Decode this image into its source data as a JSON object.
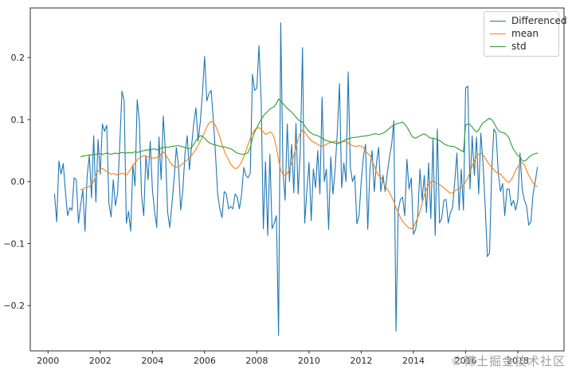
{
  "figure": {
    "background": "#ffffff"
  },
  "chart_data": {
    "type": "line",
    "title": "",
    "xlabel": "",
    "ylabel": "",
    "grid": "off",
    "xlim": [
      1999.32,
      2019.77
    ],
    "ylim": [
      -0.273,
      0.28
    ],
    "xticks": {
      "values": [
        2000,
        2002,
        2004,
        2006,
        2008,
        2010,
        2012,
        2014,
        2016,
        2018
      ],
      "labels": [
        "2000",
        "2002",
        "2004",
        "2006",
        "2008",
        "2010",
        "2012",
        "2014",
        "2016",
        "2018"
      ]
    },
    "yticks": {
      "values": [
        0.2,
        0.1,
        0.0,
        -0.1,
        -0.2
      ],
      "labels": [
        "0.2",
        "0.1",
        "0.0",
        "−0.1",
        "−0.2"
      ]
    },
    "legend": {
      "position": "upper-right"
    },
    "watermark": {
      "text": "©稀土掘金技术社区",
      "color": "#a0a0a0"
    },
    "series": [
      {
        "name": "Differenced",
        "color": "#1f77b4",
        "x_start": 2000.25,
        "dx_years": 0.083333,
        "values": [
          -0.02,
          -0.065,
          0.033,
          0.012,
          0.029,
          -0.016,
          -0.055,
          -0.042,
          -0.046,
          0.006,
          0.003,
          -0.067,
          -0.038,
          -0.013,
          -0.08,
          0.01,
          0.042,
          -0.026,
          0.074,
          -0.033,
          0.068,
          0.012,
          0.093,
          0.081,
          0.091,
          -0.035,
          -0.057,
          0.003,
          -0.039,
          -0.018,
          0.061,
          0.146,
          0.13,
          -0.067,
          -0.048,
          -0.08,
          0.027,
          -0.007,
          0.132,
          0.097,
          -0.022,
          -0.055,
          0.042,
          0.003,
          0.065,
          -0.013,
          -0.048,
          -0.074,
          0.072,
          0.003,
          0.106,
          0.046,
          -0.05,
          -0.074,
          -0.035,
          0.006,
          0.055,
          0.025,
          -0.046,
          -0.013,
          0.046,
          0.074,
          0.019,
          0.057,
          0.094,
          0.119,
          0.065,
          0.096,
          0.142,
          0.202,
          0.13,
          0.142,
          0.147,
          0.1,
          0.044,
          -0.02,
          -0.044,
          -0.058,
          -0.016,
          -0.02,
          -0.044,
          -0.04,
          -0.044,
          -0.02,
          -0.025,
          -0.044,
          -0.02,
          0.023,
          0.01,
          0.006,
          0.014,
          0.173,
          0.147,
          0.151,
          0.219,
          0.13,
          -0.076,
          0.032,
          -0.087,
          0.044,
          -0.076,
          -0.067,
          -0.055,
          -0.248,
          0.256,
          0.019,
          -0.03,
          0.093,
          0.0,
          0.06,
          -0.018,
          0.094,
          -0.02,
          0.05,
          0.216,
          -0.067,
          -0.016,
          0.031,
          -0.063,
          0.02,
          -0.01,
          0.05,
          -0.02,
          0.136,
          0.0,
          0.02,
          -0.077,
          0.04,
          -0.02,
          0.02,
          0.08,
          0.158,
          -0.01,
          0.03,
          0.0,
          0.177,
          0.023,
          0.0,
          0.01,
          -0.068,
          -0.055,
          0.0,
          0.04,
          0.06,
          -0.077,
          0.019,
          0.05,
          -0.016,
          0.03,
          0.055,
          -0.016,
          0.01,
          -0.016,
          0.014,
          0.04,
          0.06,
          0.098,
          -0.241,
          -0.046,
          -0.029,
          -0.025,
          -0.055,
          0.036,
          -0.012,
          0.006,
          -0.085,
          -0.077,
          -0.055,
          0.02,
          -0.03,
          0.01,
          -0.05,
          0.03,
          -0.06,
          0.07,
          -0.087,
          0.085,
          -0.067,
          -0.059,
          -0.03,
          -0.029,
          -0.067,
          -0.05,
          -0.042,
          0.0,
          0.046,
          -0.046,
          0.02,
          -0.046,
          0.151,
          0.154,
          -0.012,
          0.074,
          0.01,
          0.072,
          -0.02,
          0.078,
          0.03,
          -0.04,
          -0.121,
          -0.115,
          0.02,
          0.085,
          0.078,
          0.014,
          -0.016,
          -0.003,
          -0.055,
          -0.012,
          -0.012,
          -0.039,
          -0.03,
          -0.046,
          -0.029,
          0.046,
          -0.012,
          -0.03,
          -0.039,
          -0.07,
          -0.065,
          -0.02,
          0.0,
          0.023
        ]
      },
      {
        "name": "mean",
        "color": "#ff7f0e",
        "x_start": 2001.25,
        "dx_years": 0.083333,
        "values": [
          -0.013,
          -0.012,
          -0.01,
          -0.009,
          -0.008,
          -0.005,
          0.0,
          0.012,
          0.017,
          0.02,
          0.021,
          0.019,
          0.016,
          0.014,
          0.012,
          0.013,
          0.012,
          0.011,
          0.012,
          0.014,
          0.012,
          0.011,
          0.015,
          0.02,
          0.026,
          0.03,
          0.035,
          0.038,
          0.04,
          0.042,
          0.041,
          0.04,
          0.039,
          0.038,
          0.038,
          0.039,
          0.04,
          0.044,
          0.048,
          0.044,
          0.038,
          0.032,
          0.027,
          0.024,
          0.023,
          0.024,
          0.026,
          0.029,
          0.032,
          0.035,
          0.038,
          0.042,
          0.047,
          0.052,
          0.058,
          0.065,
          0.072,
          0.08,
          0.088,
          0.094,
          0.097,
          0.096,
          0.09,
          0.082,
          0.072,
          0.06,
          0.05,
          0.042,
          0.035,
          0.028,
          0.024,
          0.021,
          0.022,
          0.026,
          0.032,
          0.04,
          0.05,
          0.06,
          0.07,
          0.078,
          0.083,
          0.086,
          0.087,
          0.084,
          0.08,
          0.076,
          0.078,
          0.08,
          0.078,
          0.07,
          0.055,
          0.035,
          0.018,
          0.012,
          0.01,
          0.013,
          0.02,
          0.03,
          0.042,
          0.055,
          0.068,
          0.078,
          0.083,
          0.08,
          0.075,
          0.07,
          0.066,
          0.064,
          0.062,
          0.06,
          0.058,
          0.057,
          0.058,
          0.06,
          0.062,
          0.063,
          0.064,
          0.065,
          0.064,
          0.063,
          0.064,
          0.065,
          0.064,
          0.062,
          0.06,
          0.058,
          0.057,
          0.057,
          0.058,
          0.057,
          0.055,
          0.05,
          0.045,
          0.042,
          0.035,
          0.025,
          0.016,
          0.01,
          0.007,
          0.0,
          -0.008,
          -0.012,
          -0.018,
          -0.025,
          -0.032,
          -0.042,
          -0.05,
          -0.058,
          -0.064,
          -0.068,
          -0.072,
          -0.075,
          -0.076,
          -0.073,
          -0.066,
          -0.058,
          -0.048,
          -0.035,
          -0.022,
          -0.012,
          -0.005,
          -0.001,
          0.001,
          -0.001,
          -0.003,
          -0.005,
          -0.007,
          -0.01,
          -0.013,
          -0.016,
          -0.019,
          -0.018,
          -0.015,
          -0.013,
          -0.011,
          -0.009,
          -0.006,
          0.0,
          0.006,
          0.015,
          0.025,
          0.034,
          0.04,
          0.044,
          0.046,
          0.043,
          0.038,
          0.032,
          0.027,
          0.023,
          0.019,
          0.015,
          0.014,
          0.012,
          0.008,
          0.004,
          0.0,
          -0.001,
          0.003,
          0.01,
          0.018,
          0.024,
          0.028,
          0.031,
          0.027,
          0.018,
          0.01,
          0.005,
          -0.002,
          -0.006,
          -0.008
        ]
      },
      {
        "name": "std",
        "color": "#2ca02c",
        "x_start": 2001.25,
        "dx_years": 0.083333,
        "values": [
          0.04,
          0.041,
          0.042,
          0.042,
          0.043,
          0.043,
          0.044,
          0.044,
          0.045,
          0.045,
          0.044,
          0.045,
          0.046,
          0.045,
          0.044,
          0.045,
          0.046,
          0.045,
          0.046,
          0.047,
          0.046,
          0.046,
          0.047,
          0.046,
          0.047,
          0.048,
          0.047,
          0.048,
          0.049,
          0.05,
          0.051,
          0.051,
          0.052,
          0.052,
          0.053,
          0.051,
          0.052,
          0.054,
          0.055,
          0.056,
          0.055,
          0.056,
          0.057,
          0.057,
          0.058,
          0.058,
          0.057,
          0.056,
          0.055,
          0.054,
          0.053,
          0.055,
          0.06,
          0.066,
          0.071,
          0.074,
          0.073,
          0.07,
          0.066,
          0.063,
          0.061,
          0.06,
          0.059,
          0.058,
          0.057,
          0.056,
          0.056,
          0.055,
          0.054,
          0.053,
          0.051,
          0.048,
          0.046,
          0.045,
          0.044,
          0.044,
          0.045,
          0.047,
          0.055,
          0.07,
          0.08,
          0.087,
          0.094,
          0.1,
          0.106,
          0.11,
          0.113,
          0.117,
          0.119,
          0.121,
          0.126,
          0.133,
          0.13,
          0.126,
          0.122,
          0.118,
          0.115,
          0.112,
          0.108,
          0.104,
          0.1,
          0.097,
          0.096,
          0.09,
          0.085,
          0.081,
          0.078,
          0.076,
          0.075,
          0.074,
          0.072,
          0.07,
          0.068,
          0.066,
          0.065,
          0.064,
          0.063,
          0.062,
          0.061,
          0.062,
          0.064,
          0.066,
          0.068,
          0.069,
          0.07,
          0.071,
          0.071,
          0.072,
          0.072,
          0.073,
          0.073,
          0.074,
          0.074,
          0.075,
          0.076,
          0.077,
          0.077,
          0.076,
          0.077,
          0.078,
          0.08,
          0.083,
          0.086,
          0.089,
          0.091,
          0.093,
          0.094,
          0.095,
          0.096,
          0.093,
          0.088,
          0.082,
          0.075,
          0.071,
          0.07,
          0.072,
          0.074,
          0.076,
          0.077,
          0.075,
          0.072,
          0.07,
          0.07,
          0.069,
          0.068,
          0.066,
          0.064,
          0.061,
          0.059,
          0.058,
          0.057,
          0.057,
          0.056,
          0.054,
          0.052,
          0.05,
          0.048,
          0.091,
          0.093,
          0.092,
          0.088,
          0.083,
          0.08,
          0.083,
          0.09,
          0.095,
          0.097,
          0.1,
          0.102,
          0.1,
          0.095,
          0.088,
          0.083,
          0.08,
          0.079,
          0.078,
          0.075,
          0.07,
          0.06,
          0.052,
          0.047,
          0.042,
          0.04,
          0.034,
          0.033,
          0.035,
          0.039,
          0.042,
          0.044,
          0.045,
          0.046
        ]
      }
    ]
  }
}
